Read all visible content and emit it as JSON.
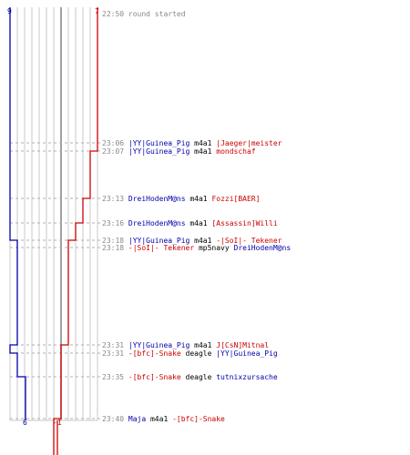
{
  "scores": {
    "blue_start": "9",
    "red_start": "7",
    "blue_end": "6",
    "red_end": "-1"
  },
  "colors": {
    "blue": "#0000aa",
    "red": "#cc0000",
    "grid": "#c8c8c8",
    "center": "#808080",
    "time": "#888888",
    "text": "#000000"
  },
  "events": [
    {
      "time": "22:50",
      "parts": [
        {
          "t": "round started",
          "c": "time"
        }
      ]
    },
    {
      "time": "23:06",
      "parts": [
        {
          "t": "|YY|Guinea_Pig",
          "c": "blue"
        },
        {
          "t": " m4a1 ",
          "c": "text"
        },
        {
          "t": "|Jaeger|meister",
          "c": "red"
        }
      ]
    },
    {
      "time": "23:07",
      "parts": [
        {
          "t": "|YY|Guinea_Pig",
          "c": "blue"
        },
        {
          "t": " m4a1 ",
          "c": "text"
        },
        {
          "t": "mondschaf",
          "c": "red"
        }
      ]
    },
    {
      "time": "23:13",
      "parts": [
        {
          "t": "DreiHodenM@ns",
          "c": "blue"
        },
        {
          "t": " m4a1 ",
          "c": "text"
        },
        {
          "t": "Fozzi[BAER]",
          "c": "red"
        }
      ]
    },
    {
      "time": "23:16",
      "parts": [
        {
          "t": "DreiHodenM@ns",
          "c": "blue"
        },
        {
          "t": " m4a1 ",
          "c": "text"
        },
        {
          "t": "[Assassin]Willi",
          "c": "red"
        }
      ]
    },
    {
      "time": "23:18",
      "parts": [
        {
          "t": "|YY|Guinea_Pig",
          "c": "blue"
        },
        {
          "t": " m4a1 ",
          "c": "text"
        },
        {
          "t": "-|SoI|- Tekener",
          "c": "red"
        }
      ]
    },
    {
      "time": "23:18",
      "parts": [
        {
          "t": "-|SoI|- Tekener",
          "c": "red"
        },
        {
          "t": " mp5navy ",
          "c": "text"
        },
        {
          "t": "DreiHodenM@ns",
          "c": "blue"
        }
      ]
    },
    {
      "time": "23:31",
      "parts": [
        {
          "t": "|YY|Guinea_Pig",
          "c": "blue"
        },
        {
          "t": " m4a1 ",
          "c": "text"
        },
        {
          "t": "J[CsN]Mitnal",
          "c": "red"
        }
      ]
    },
    {
      "time": "23:31",
      "parts": [
        {
          "t": "-[bfc]-Snake",
          "c": "red"
        },
        {
          "t": " deagle ",
          "c": "text"
        },
        {
          "t": "|YY|Guinea_Pig",
          "c": "blue"
        }
      ]
    },
    {
      "time": "23:35",
      "parts": [
        {
          "t": "-[bfc]-Snake",
          "c": "red"
        },
        {
          "t": " deagle ",
          "c": "text"
        },
        {
          "t": "tutnixzursache",
          "c": "blue"
        }
      ]
    },
    {
      "time": "23:40",
      "parts": [
        {
          "t": "Maja",
          "c": "blue"
        },
        {
          "t": " m4a1 ",
          "c": "text"
        },
        {
          "t": "-[bfc]-Snake",
          "c": "red"
        }
      ]
    }
  ]
}
